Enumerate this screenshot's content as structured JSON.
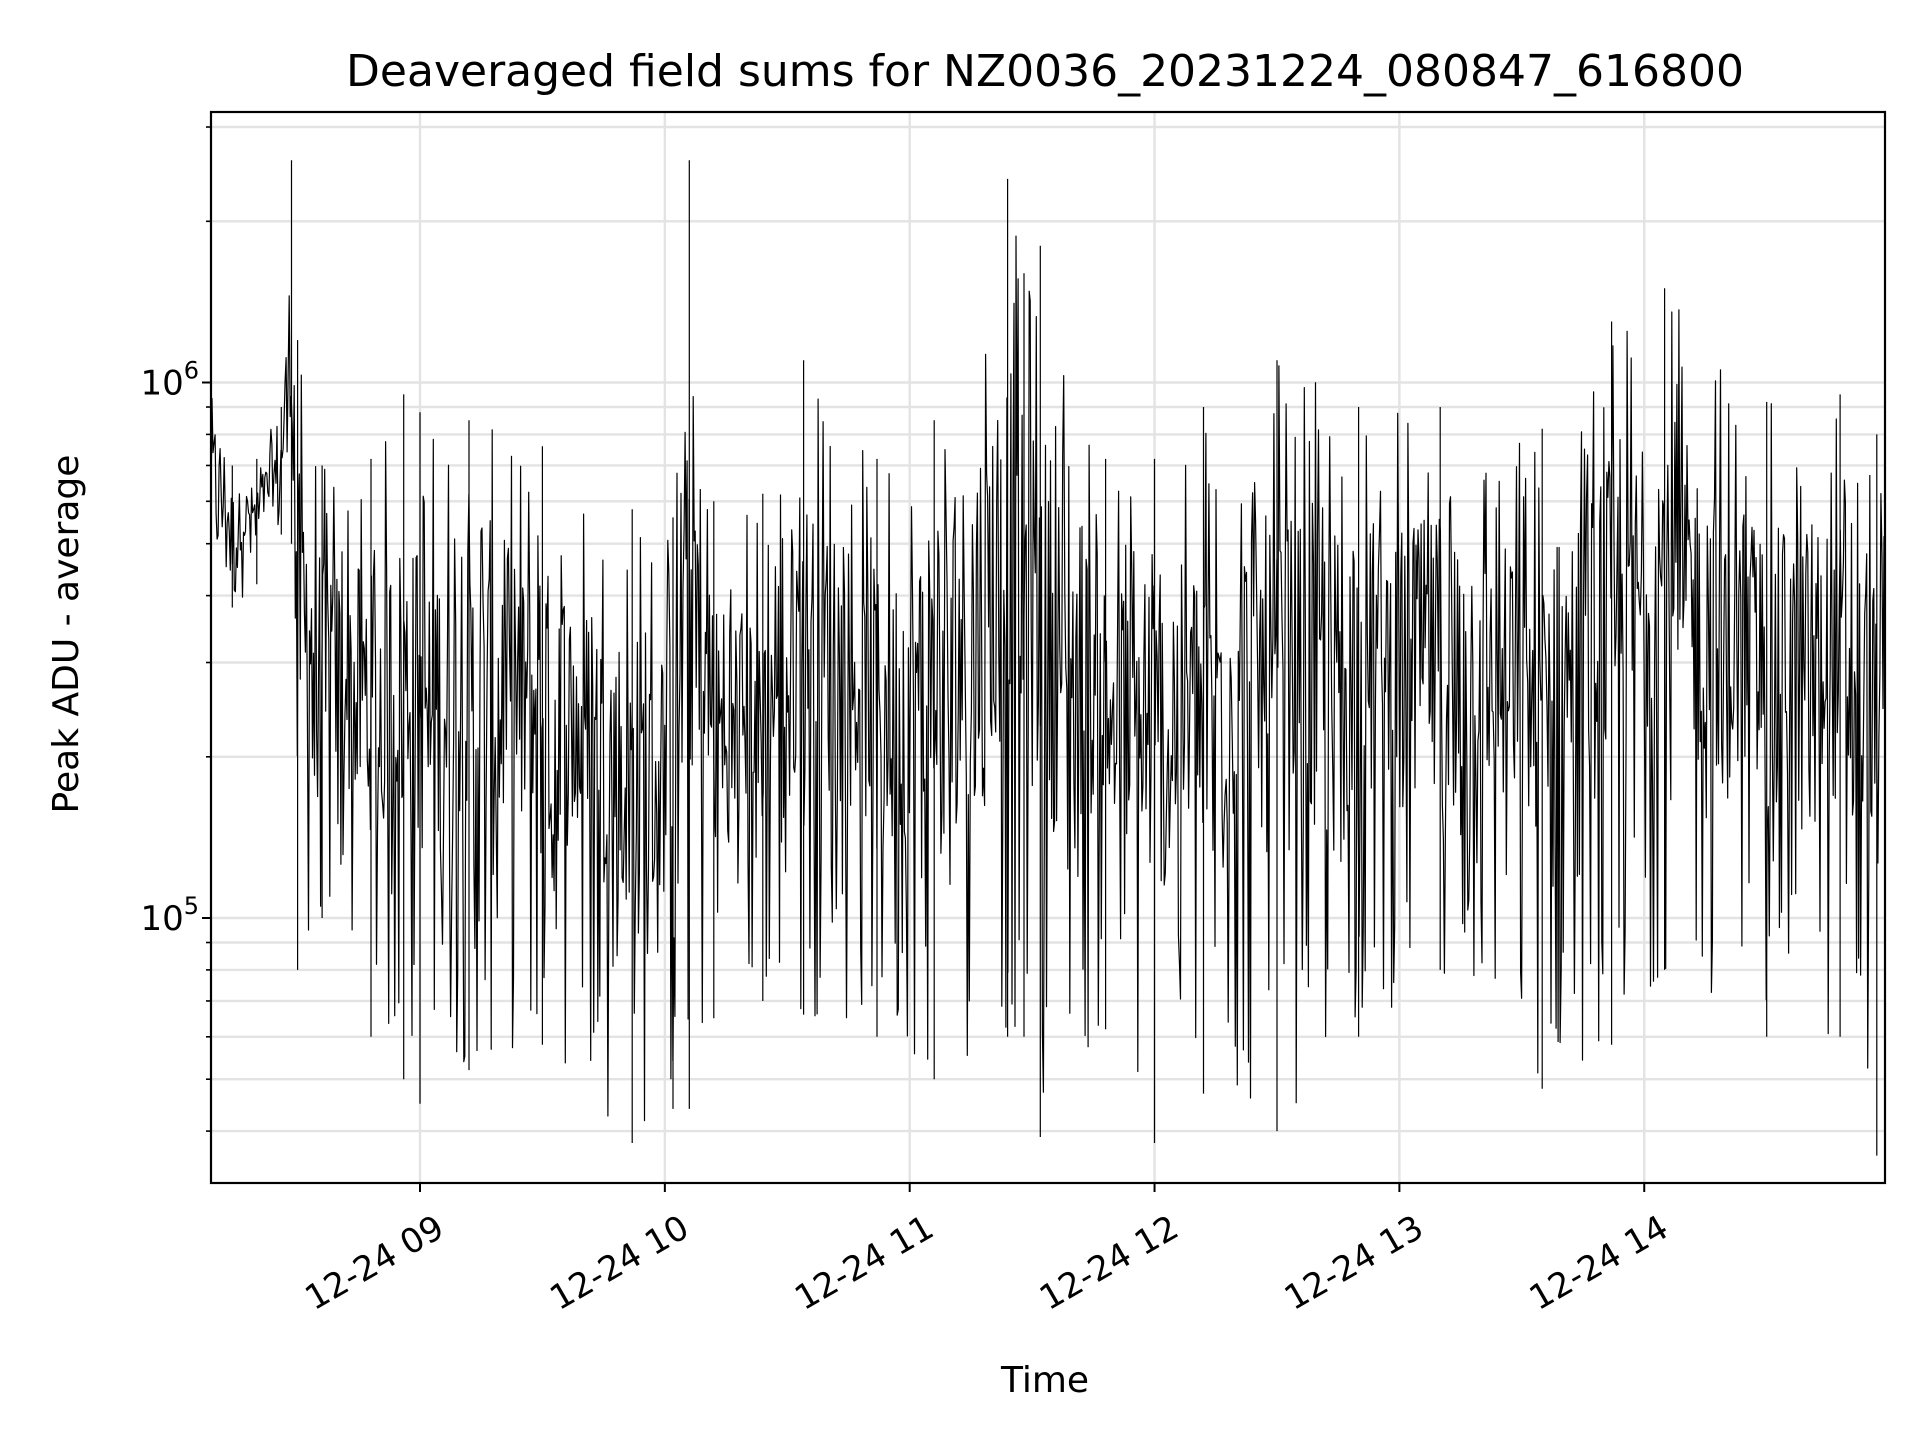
{
  "chart_data": {
    "type": "line",
    "title": "Deaveraged field sums for NZ0036_20231224_080847_616800",
    "xlabel": "Time",
    "ylabel": "Peak ADU - average",
    "y_scale": "log",
    "y_base": "10",
    "ylim": [
      32000,
      3200000
    ],
    "y_major_ticks": [
      {
        "value": 100000,
        "exponent": "5"
      },
      {
        "value": 1000000,
        "exponent": "6"
      }
    ],
    "y_minor_ticks": [
      40000,
      50000,
      60000,
      70000,
      80000,
      90000,
      200000,
      300000,
      400000,
      500000,
      600000,
      700000,
      800000,
      900000,
      2000000,
      3000000
    ],
    "xlim": [
      "2023-12-24 08:08:47",
      "2023-12-24 14:59:00"
    ],
    "x_ticks": [
      {
        "time": "2023-12-24 09:00",
        "label": "12-24 09"
      },
      {
        "time": "2023-12-24 10:00",
        "label": "12-24 10"
      },
      {
        "time": "2023-12-24 11:00",
        "label": "12-24 11"
      },
      {
        "time": "2023-12-24 12:00",
        "label": "12-24 12"
      },
      {
        "time": "2023-12-24 13:00",
        "label": "12-24 13"
      },
      {
        "time": "2023-12-24 14:00",
        "label": "12-24 14"
      }
    ],
    "grid": true,
    "legend": "none",
    "series": [
      {
        "color": "#000000",
        "envelope": [
          {
            "time": "2023-12-24 08:08:47",
            "min": 480000,
            "max": 950000
          },
          {
            "time": "2023-12-24 08:14:00",
            "min": 380000,
            "max": 700000
          },
          {
            "time": "2023-12-24 08:20:00",
            "min": 420000,
            "max": 720000
          },
          {
            "time": "2023-12-24 08:26:00",
            "min": 520000,
            "max": 900000
          },
          {
            "time": "2023-12-24 08:28:30",
            "min": 500000,
            "max": 2600000
          },
          {
            "time": "2023-12-24 08:30:00",
            "min": 80000,
            "max": 1200000
          },
          {
            "time": "2023-12-24 08:36:00",
            "min": 100000,
            "max": 700000
          },
          {
            "time": "2023-12-24 08:48:00",
            "min": 60000,
            "max": 720000
          },
          {
            "time": "2023-12-24 08:56:00",
            "min": 50000,
            "max": 950000
          },
          {
            "time": "2023-12-24 09:00:00",
            "min": 45000,
            "max": 880000
          },
          {
            "time": "2023-12-24 09:12:00",
            "min": 52000,
            "max": 850000
          },
          {
            "time": "2023-12-24 09:30:00",
            "min": 58000,
            "max": 760000
          },
          {
            "time": "2023-12-24 09:52:00",
            "min": 38000,
            "max": 580000
          },
          {
            "time": "2023-12-24 10:02:00",
            "min": 44000,
            "max": 560000
          },
          {
            "time": "2023-12-24 10:06:00",
            "min": 44000,
            "max": 2600000
          },
          {
            "time": "2023-12-24 10:12:00",
            "min": 65000,
            "max": 600000
          },
          {
            "time": "2023-12-24 10:24:00",
            "min": 70000,
            "max": 620000
          },
          {
            "time": "2023-12-24 10:34:00",
            "min": 66000,
            "max": 1100000
          },
          {
            "time": "2023-12-24 10:52:00",
            "min": 60000,
            "max": 720000
          },
          {
            "time": "2023-12-24 11:06:00",
            "min": 50000,
            "max": 850000
          },
          {
            "time": "2023-12-24 11:24:00",
            "min": 60000,
            "max": 2400000
          },
          {
            "time": "2023-12-24 11:28:00",
            "min": 60000,
            "max": 1600000
          },
          {
            "time": "2023-12-24 11:32:00",
            "min": 39000,
            "max": 1800000
          },
          {
            "time": "2023-12-24 11:48:00",
            "min": 62000,
            "max": 720000
          },
          {
            "time": "2023-12-24 12:00:00",
            "min": 38000,
            "max": 720000
          },
          {
            "time": "2023-12-24 12:12:00",
            "min": 47000,
            "max": 900000
          },
          {
            "time": "2023-12-24 12:30:00",
            "min": 40000,
            "max": 1100000
          },
          {
            "time": "2023-12-24 12:50:00",
            "min": 60000,
            "max": 900000
          },
          {
            "time": "2023-12-24 13:10:00",
            "min": 80000,
            "max": 900000
          },
          {
            "time": "2023-12-24 13:35:00",
            "min": 48000,
            "max": 820000
          },
          {
            "time": "2023-12-24 13:52:00",
            "min": 58000,
            "max": 1300000
          },
          {
            "time": "2023-12-24 14:05:00",
            "min": 80000,
            "max": 1500000
          },
          {
            "time": "2023-12-24 14:30:00",
            "min": 60000,
            "max": 920000
          },
          {
            "time": "2023-12-24 14:48:00",
            "min": 60000,
            "max": 950000
          },
          {
            "time": "2023-12-24 14:57:00",
            "min": 36000,
            "max": 800000
          },
          {
            "time": "2023-12-24 14:59:00",
            "min": 130000,
            "max": 700000
          }
        ]
      }
    ]
  }
}
